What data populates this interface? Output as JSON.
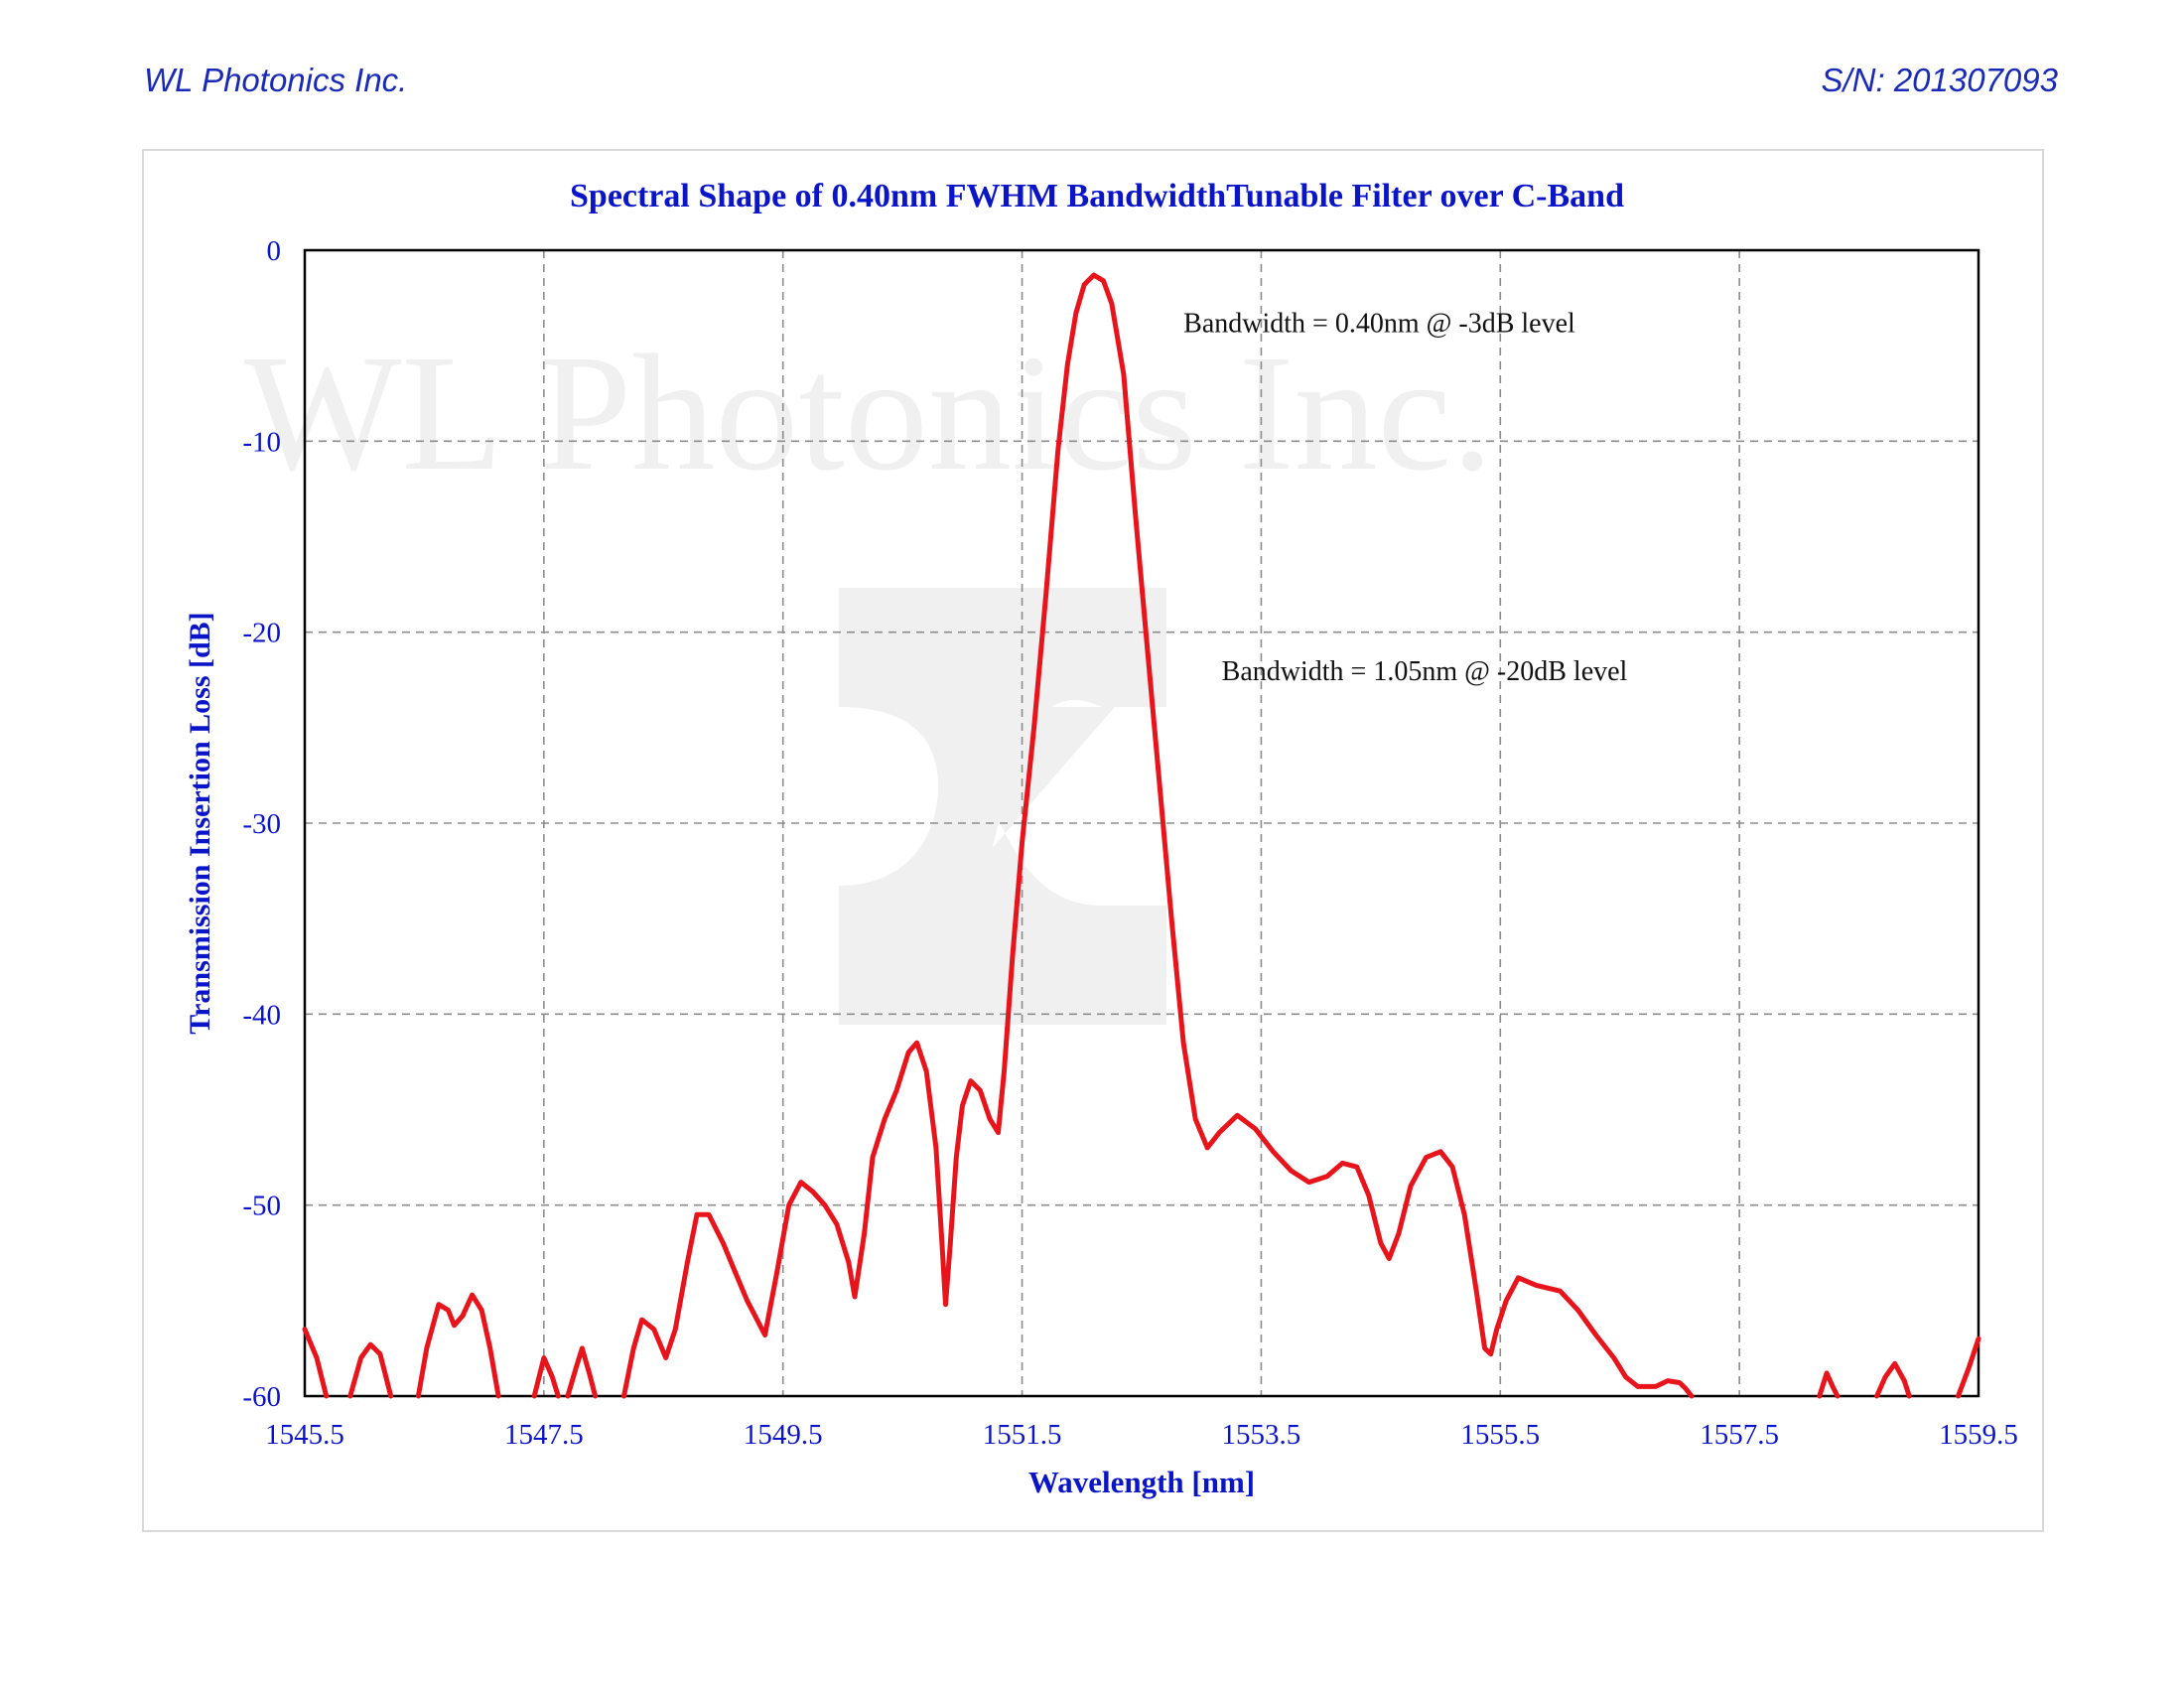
{
  "header": {
    "company": "WL Photonics Inc.",
    "serial": "S/N: 201307093"
  },
  "colors": {
    "accent_blue": "#0a14c8",
    "line_red": "#e8141c",
    "grid_gray": "#8c8c8c"
  },
  "chart_data": {
    "type": "line",
    "title": "Spectral Shape of 0.40nm FWHM BandwidthTunable Filter over C-Band",
    "xlabel": "Wavelength [nm]",
    "ylabel": "Transmission Insertion Loss [dB]",
    "xlim": [
      1545.5,
      1559.5
    ],
    "ylim": [
      -60,
      0
    ],
    "xticks": [
      1545.5,
      1547.5,
      1549.5,
      1551.5,
      1553.5,
      1555.5,
      1557.5,
      1559.5
    ],
    "xtick_labels": [
      "1545.5",
      "1547.5",
      "1549.5",
      "1551.5",
      "1553.5",
      "1555.5",
      "1557.5",
      "1559.5"
    ],
    "yticks": [
      0,
      -10,
      -20,
      -30,
      -40,
      -50,
      -60
    ],
    "ytick_labels": [
      "0",
      "-10",
      "-20",
      "-30",
      "-40",
      "-50",
      "-60"
    ],
    "grid": true,
    "legend": "none",
    "watermark": "WL Photonics Inc.",
    "annotations": [
      {
        "text": "Bandwidth = 0.40nm @ -3dB level",
        "x": 1552.85,
        "y": -4.3
      },
      {
        "text": "Bandwidth = 1.05nm @ -20dB level",
        "x": 1553.17,
        "y": -22.5
      }
    ],
    "series": [
      {
        "segments": [
          [
            [
              1545.5,
              -56.5
            ],
            [
              1545.6,
              -58.0
            ],
            [
              1545.68,
              -60.0
            ]
          ],
          [
            [
              1545.88,
              -60.0
            ],
            [
              1545.97,
              -58.0
            ],
            [
              1546.05,
              -57.3
            ],
            [
              1546.13,
              -57.8
            ],
            [
              1546.22,
              -60.0
            ]
          ],
          [
            [
              1546.45,
              -60.0
            ],
            [
              1546.52,
              -57.5
            ],
            [
              1546.62,
              -55.2
            ],
            [
              1546.7,
              -55.5
            ],
            [
              1546.75,
              -56.3
            ],
            [
              1546.82,
              -55.8
            ],
            [
              1546.9,
              -54.7
            ],
            [
              1546.98,
              -55.5
            ],
            [
              1547.05,
              -57.5
            ],
            [
              1547.12,
              -60.0
            ]
          ],
          [
            [
              1547.42,
              -60.0
            ],
            [
              1547.5,
              -58.0
            ],
            [
              1547.57,
              -59.0
            ],
            [
              1547.62,
              -60.0
            ]
          ],
          [
            [
              1547.7,
              -60.0
            ],
            [
              1547.77,
              -58.5
            ],
            [
              1547.82,
              -57.5
            ],
            [
              1547.88,
              -58.8
            ],
            [
              1547.93,
              -60.0
            ]
          ],
          [
            [
              1548.17,
              -60.0
            ],
            [
              1548.25,
              -57.5
            ],
            [
              1548.32,
              -56.0
            ],
            [
              1548.42,
              -56.5
            ],
            [
              1548.52,
              -58.0
            ],
            [
              1548.6,
              -56.5
            ],
            [
              1548.7,
              -53.0
            ],
            [
              1548.78,
              -50.5
            ],
            [
              1548.88,
              -50.5
            ],
            [
              1549.0,
              -52.0
            ],
            [
              1549.1,
              -53.5
            ],
            [
              1549.2,
              -55.0
            ],
            [
              1549.35,
              -56.8
            ],
            [
              1549.45,
              -53.5
            ],
            [
              1549.55,
              -50.0
            ],
            [
              1549.65,
              -48.8
            ],
            [
              1549.75,
              -49.3
            ],
            [
              1549.85,
              -50.0
            ],
            [
              1549.95,
              -51.0
            ],
            [
              1550.05,
              -53.0
            ],
            [
              1550.1,
              -54.8
            ],
            [
              1550.18,
              -51.5
            ],
            [
              1550.25,
              -47.5
            ],
            [
              1550.35,
              -45.5
            ],
            [
              1550.45,
              -44.0
            ],
            [
              1550.55,
              -42.0
            ],
            [
              1550.62,
              -41.5
            ],
            [
              1550.7,
              -43.0
            ],
            [
              1550.78,
              -47.0
            ],
            [
              1550.83,
              -52.0
            ],
            [
              1550.86,
              -55.2
            ],
            [
              1550.9,
              -52.0
            ],
            [
              1550.95,
              -47.5
            ],
            [
              1551.0,
              -44.8
            ],
            [
              1551.07,
              -43.5
            ],
            [
              1551.15,
              -44.0
            ],
            [
              1551.23,
              -45.5
            ],
            [
              1551.3,
              -46.2
            ],
            [
              1551.35,
              -43.0
            ],
            [
              1551.42,
              -37.0
            ],
            [
              1551.5,
              -31.0
            ],
            [
              1551.6,
              -25.0
            ],
            [
              1551.7,
              -18.0
            ],
            [
              1551.8,
              -10.5
            ],
            [
              1551.88,
              -6.0
            ],
            [
              1551.95,
              -3.3
            ],
            [
              1552.02,
              -1.8
            ],
            [
              1552.1,
              -1.3
            ],
            [
              1552.18,
              -1.6
            ],
            [
              1552.25,
              -2.8
            ],
            [
              1552.35,
              -6.5
            ],
            [
              1552.45,
              -14.0
            ],
            [
              1552.55,
              -21.0
            ],
            [
              1552.65,
              -28.0
            ],
            [
              1552.75,
              -35.0
            ],
            [
              1552.85,
              -41.5
            ],
            [
              1552.95,
              -45.5
            ],
            [
              1553.05,
              -47.0
            ],
            [
              1553.15,
              -46.2
            ],
            [
              1553.3,
              -45.3
            ],
            [
              1553.45,
              -46.0
            ],
            [
              1553.6,
              -47.2
            ],
            [
              1553.75,
              -48.2
            ],
            [
              1553.9,
              -48.8
            ],
            [
              1554.05,
              -48.5
            ],
            [
              1554.18,
              -47.8
            ],
            [
              1554.3,
              -48.0
            ],
            [
              1554.4,
              -49.5
            ],
            [
              1554.5,
              -52.0
            ],
            [
              1554.57,
              -52.8
            ],
            [
              1554.65,
              -51.5
            ],
            [
              1554.75,
              -49.0
            ],
            [
              1554.88,
              -47.5
            ],
            [
              1555.0,
              -47.2
            ],
            [
              1555.1,
              -48.0
            ],
            [
              1555.2,
              -50.5
            ],
            [
              1555.3,
              -54.5
            ],
            [
              1555.37,
              -57.5
            ],
            [
              1555.42,
              -57.8
            ],
            [
              1555.47,
              -56.5
            ],
            [
              1555.55,
              -55.0
            ],
            [
              1555.65,
              -53.8
            ],
            [
              1555.8,
              -54.2
            ],
            [
              1556.0,
              -54.5
            ],
            [
              1556.15,
              -55.5
            ],
            [
              1556.3,
              -56.8
            ],
            [
              1556.45,
              -58.0
            ],
            [
              1556.55,
              -59.0
            ],
            [
              1556.65,
              -59.5
            ],
            [
              1556.8,
              -59.5
            ],
            [
              1556.9,
              -59.2
            ],
            [
              1557.0,
              -59.3
            ],
            [
              1557.05,
              -59.6
            ],
            [
              1557.1,
              -60.0
            ]
          ],
          [
            [
              1558.17,
              -60.0
            ],
            [
              1558.23,
              -58.8
            ],
            [
              1558.28,
              -59.5
            ],
            [
              1558.32,
              -60.0
            ]
          ],
          [
            [
              1558.65,
              -60.0
            ],
            [
              1558.72,
              -59.0
            ],
            [
              1558.8,
              -58.3
            ],
            [
              1558.88,
              -59.2
            ],
            [
              1558.92,
              -60.0
            ]
          ],
          [
            [
              1559.33,
              -60.0
            ],
            [
              1559.42,
              -58.5
            ],
            [
              1559.5,
              -57.0
            ]
          ]
        ]
      }
    ]
  }
}
